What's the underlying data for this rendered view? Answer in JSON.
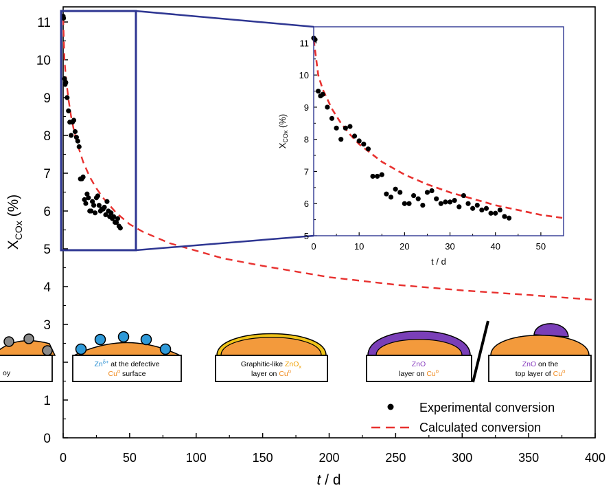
{
  "chart_data": [
    {
      "type": "scatter",
      "xlabel_prefix": "t",
      "xlabel_suffix": " / d",
      "ylabel_main": "X",
      "ylabel_sub": "COx",
      "ylabel_suffix": " (%)",
      "xlim": [
        0,
        400
      ],
      "ylim": [
        0,
        11.4
      ],
      "xticks": [
        "0",
        "50",
        "100",
        "150",
        "200",
        "250",
        "300",
        "350",
        "400"
      ],
      "yticks": [
        "0",
        "1",
        "2",
        "3",
        "4",
        "5",
        "6",
        "7",
        "8",
        "9",
        "10",
        "11"
      ],
      "legend_position": "bottom-right",
      "series": [
        {
          "name": "Experimental conversion",
          "kind": "points",
          "color": "#000000"
        },
        {
          "name": "Calculated conversion",
          "kind": "dashed-line",
          "color": "#e8312f"
        }
      ],
      "experimental": {
        "x": [
          0,
          0.3,
          1,
          1.5,
          2,
          3,
          4,
          5,
          6,
          7,
          8,
          9,
          10,
          11,
          12,
          13,
          14,
          15,
          16,
          17,
          18,
          19,
          20,
          21,
          22,
          23,
          24,
          25,
          26,
          27,
          28,
          29,
          30,
          31,
          32,
          33,
          34,
          35,
          36,
          37,
          38,
          39,
          40,
          41,
          42,
          43
        ],
        "y": [
          11.15,
          11.1,
          9.5,
          9.35,
          9.4,
          9.0,
          8.65,
          8.35,
          8.0,
          8.35,
          8.4,
          8.1,
          7.95,
          7.85,
          7.7,
          6.85,
          6.85,
          6.9,
          6.3,
          6.2,
          6.45,
          6.35,
          6.0,
          6.0,
          6.25,
          6.15,
          5.95,
          6.35,
          6.4,
          6.15,
          6.0,
          6.05,
          6.05,
          6.1,
          5.9,
          6.25,
          6.0,
          5.85,
          5.95,
          5.8,
          5.85,
          5.7,
          5.7,
          5.8,
          5.6,
          5.55
        ]
      },
      "calculated": {
        "x": [
          0,
          1,
          2,
          4,
          6,
          8,
          10,
          15,
          20,
          25,
          30,
          40,
          50,
          60,
          80,
          100,
          120,
          150,
          200,
          250,
          300,
          350,
          400
        ],
        "y": [
          11.1,
          10.0,
          9.55,
          8.95,
          8.5,
          8.15,
          7.85,
          7.3,
          6.9,
          6.6,
          6.35,
          5.95,
          5.65,
          5.45,
          5.15,
          4.95,
          4.75,
          4.55,
          4.25,
          4.05,
          3.9,
          3.78,
          3.65
        ]
      }
    },
    {
      "type": "scatter",
      "inset": true,
      "xlabel": "t / d",
      "ylabel_main": "X",
      "ylabel_sub": "COx",
      "ylabel_suffix": " (%)",
      "xlim": [
        0,
        55
      ],
      "ylim": [
        5,
        11.5
      ],
      "xticks": [
        "0",
        "10",
        "20",
        "30",
        "40",
        "50"
      ],
      "yticks": [
        "5",
        "6",
        "7",
        "8",
        "9",
        "10",
        "11"
      ]
    }
  ],
  "diagrams": [
    {
      "line1": "",
      "line2": "oy"
    },
    {
      "line1_a": "Zn",
      "line1_sup": "δ+",
      "line1_b": " at the defective",
      "line2_a": "Cu",
      "line2_sup": "0",
      "line2_b": " surface"
    },
    {
      "line1_a": "Graphitic-like ",
      "line1_b": "ZnO",
      "line1_sub": "x",
      "line2_a": "layer on ",
      "line2_b": "Cu",
      "line2_sup": "0"
    },
    {
      "line1": "ZnO",
      "line2_a": "layer on ",
      "line2_b": "Cu",
      "line2_sup": "0"
    },
    {
      "line1_a": "ZnO",
      "line1_b": " on the",
      "line2_a": "top layer of ",
      "line2_b": "Cu",
      "line2_sup": "0"
    }
  ],
  "colors": {
    "orange": "#f39a3c",
    "blue": "#2f9ad9",
    "gold": "#f0c419",
    "purple": "#7a3fb8",
    "grey": "#8a8a8a",
    "navy": "#2e3692",
    "red_dash": "#e8312f",
    "zn_text": "#1f8ad0",
    "cu_text": "#f08a1f",
    "znox_text": "#f0a000",
    "zno_text": "#8a3fc0"
  }
}
